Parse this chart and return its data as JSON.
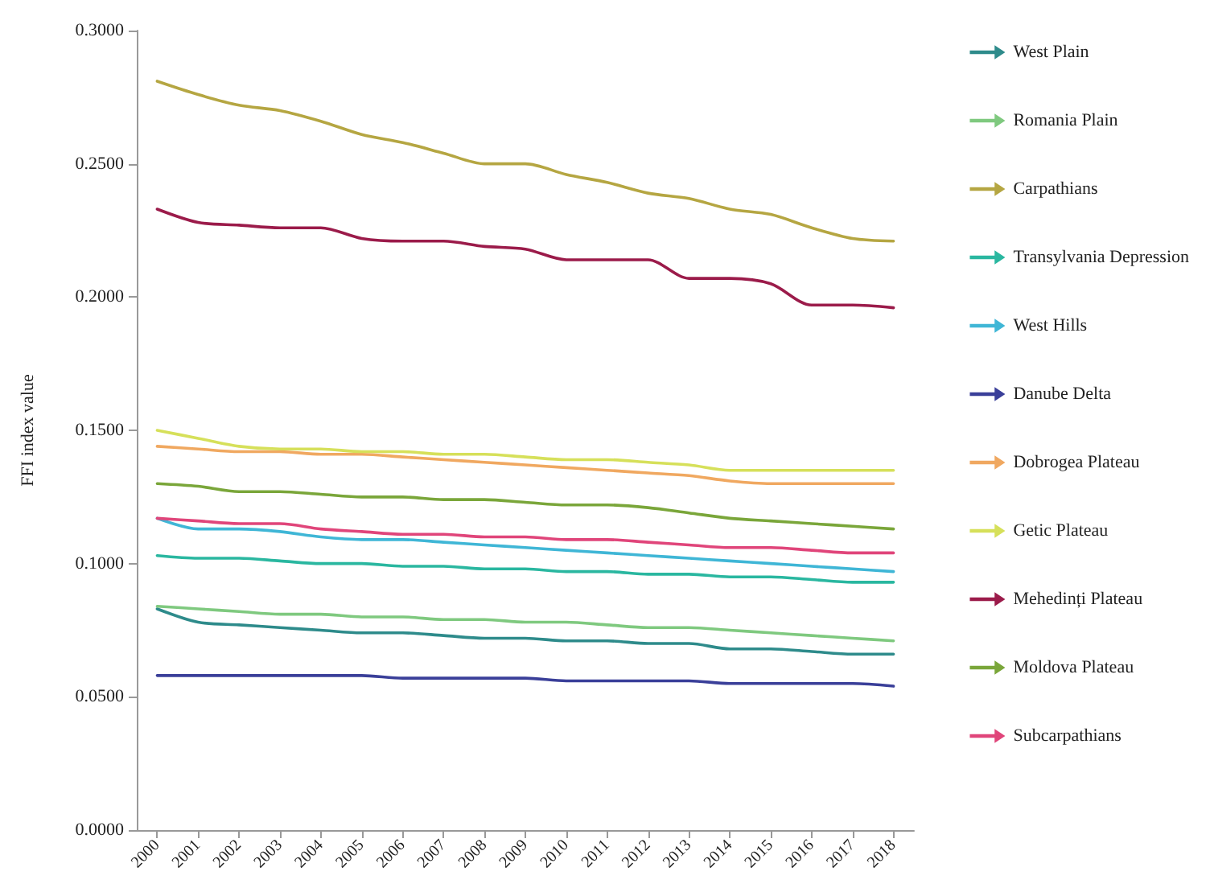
{
  "chart_data": {
    "type": "line",
    "ylabel": "FFI index value",
    "categories": [
      "2000",
      "2001",
      "2002",
      "2003",
      "2004",
      "2005",
      "2006",
      "2007",
      "2008",
      "2009",
      "2010",
      "2011",
      "2012",
      "2013",
      "2014",
      "2015",
      "2016",
      "2017",
      "2018"
    ],
    "series": [
      {
        "name": "West Plain",
        "color": "#2e8b8b",
        "values": [
          0.083,
          0.078,
          0.077,
          0.076,
          0.075,
          0.074,
          0.074,
          0.073,
          0.072,
          0.072,
          0.071,
          0.071,
          0.07,
          0.07,
          0.068,
          0.068,
          0.067,
          0.066,
          0.066
        ]
      },
      {
        "name": "Romania Plain",
        "color": "#7fc97f",
        "values": [
          0.084,
          0.083,
          0.082,
          0.081,
          0.081,
          0.08,
          0.08,
          0.079,
          0.079,
          0.078,
          0.078,
          0.077,
          0.076,
          0.076,
          0.075,
          0.074,
          0.073,
          0.072,
          0.071
        ]
      },
      {
        "name": "Carpathians",
        "color": "#b5a642",
        "values": [
          0.281,
          0.276,
          0.272,
          0.27,
          0.266,
          0.261,
          0.258,
          0.254,
          0.25,
          0.25,
          0.246,
          0.243,
          0.239,
          0.237,
          0.233,
          0.231,
          0.226,
          0.222,
          0.221
        ]
      },
      {
        "name": "Transylvania Depression",
        "color": "#2ab7a0",
        "values": [
          0.103,
          0.102,
          0.102,
          0.101,
          0.1,
          0.1,
          0.099,
          0.099,
          0.098,
          0.098,
          0.097,
          0.097,
          0.096,
          0.096,
          0.095,
          0.095,
          0.094,
          0.093,
          0.093
        ]
      },
      {
        "name": "West Hills",
        "color": "#3fb6d6",
        "values": [
          0.117,
          0.113,
          0.113,
          0.112,
          0.11,
          0.109,
          0.109,
          0.108,
          0.107,
          0.106,
          0.105,
          0.104,
          0.103,
          0.102,
          0.101,
          0.1,
          0.099,
          0.098,
          0.097
        ]
      },
      {
        "name": "Danube Delta",
        "color": "#3a3f99",
        "values": [
          0.058,
          0.058,
          0.058,
          0.058,
          0.058,
          0.058,
          0.057,
          0.057,
          0.057,
          0.057,
          0.056,
          0.056,
          0.056,
          0.056,
          0.055,
          0.055,
          0.055,
          0.055,
          0.054
        ]
      },
      {
        "name": "Dobrogea Plateau",
        "color": "#f0a860",
        "values": [
          0.144,
          0.143,
          0.142,
          0.142,
          0.141,
          0.141,
          0.14,
          0.139,
          0.138,
          0.137,
          0.136,
          0.135,
          0.134,
          0.133,
          0.131,
          0.13,
          0.13,
          0.13,
          0.13
        ]
      },
      {
        "name": "Getic Plateau",
        "color": "#d6e05a",
        "values": [
          0.15,
          0.147,
          0.144,
          0.143,
          0.143,
          0.142,
          0.142,
          0.141,
          0.141,
          0.14,
          0.139,
          0.139,
          0.138,
          0.137,
          0.135,
          0.135,
          0.135,
          0.135,
          0.135
        ]
      },
      {
        "name": "Mehedinți Plateau",
        "color": "#9b1b4a",
        "values": [
          0.233,
          0.228,
          0.227,
          0.226,
          0.226,
          0.222,
          0.221,
          0.221,
          0.219,
          0.218,
          0.214,
          0.214,
          0.214,
          0.207,
          0.207,
          0.205,
          0.197,
          0.197,
          0.196
        ]
      },
      {
        "name": "Moldova Plateau",
        "color": "#7aa63a",
        "values": [
          0.13,
          0.129,
          0.127,
          0.127,
          0.126,
          0.125,
          0.125,
          0.124,
          0.124,
          0.123,
          0.122,
          0.122,
          0.121,
          0.119,
          0.117,
          0.116,
          0.115,
          0.114,
          0.113
        ]
      },
      {
        "name": "Subcarpathians",
        "color": "#e0457a",
        "values": [
          0.117,
          0.116,
          0.115,
          0.115,
          0.113,
          0.112,
          0.111,
          0.111,
          0.11,
          0.11,
          0.109,
          0.109,
          0.108,
          0.107,
          0.106,
          0.106,
          0.105,
          0.104,
          0.104
        ]
      }
    ],
    "ylim": [
      0,
      0.3
    ],
    "yticks": [
      {
        "value": 0,
        "label": "0.0000"
      },
      {
        "value": 0.05,
        "label": "0.0500"
      },
      {
        "value": 0.1,
        "label": "0.1000"
      },
      {
        "value": 0.15,
        "label": "0.1500"
      },
      {
        "value": 0.2,
        "label": "0.2000"
      },
      {
        "value": 0.25,
        "label": "0.2500"
      },
      {
        "value": 0.3,
        "label": "0.3000"
      }
    ],
    "grid": false,
    "legend": "right",
    "marker": "none",
    "line_style": "solid"
  }
}
